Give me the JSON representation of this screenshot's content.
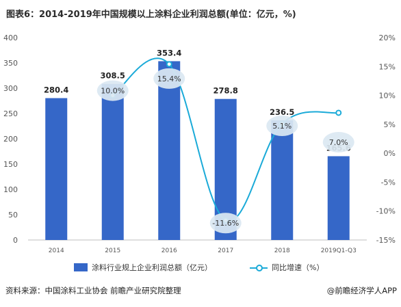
{
  "title": "图表6：2014-2019年中国规模以上涂料企业利润总额(单位：亿元，%)",
  "source": "资料来源：中国涂料工业协会 前瞻产业研究院整理",
  "brand": "@前瞻经济学人APP",
  "colors": {
    "bar": "#3567c8",
    "line": "#1aaad8",
    "label_bubble": "#dbe8f2",
    "axis_text": "#555555"
  },
  "chart_data": {
    "type": "bar",
    "categories": [
      "2014",
      "2015",
      "2016",
      "2017",
      "2018",
      "2019Q1-Q3"
    ],
    "series": [
      {
        "name": "涂料行业规上企业利润总额（亿元）",
        "type": "bar",
        "axis": "left",
        "values": [
          280.4,
          308.5,
          353.4,
          278.8,
          236.5,
          165.6
        ],
        "labels": [
          "280.4",
          "308.5",
          "353.4",
          "278.8",
          "236.5",
          "165.6"
        ]
      },
      {
        "name": "同比增速（%）",
        "type": "line",
        "axis": "right",
        "values": [
          null,
          10.0,
          15.4,
          -11.6,
          5.1,
          7.0
        ],
        "labels": [
          "",
          "10.0%",
          "15.4%",
          "-11.6%",
          "5.1%",
          "7.0%"
        ]
      }
    ],
    "y_left": {
      "min": 0,
      "max": 400,
      "ticks": [
        "0",
        "50",
        "100",
        "150",
        "200",
        "250",
        "300",
        "350",
        "400"
      ]
    },
    "y_right": {
      "min": -15,
      "max": 20,
      "ticks": [
        "-15%",
        "-10%",
        "-5%",
        "0%",
        "5%",
        "10%",
        "15%",
        "20%"
      ]
    },
    "grid": false,
    "legend_position": "bottom"
  },
  "legend": {
    "bar_label": "涂料行业规上企业利润总额（亿元）",
    "line_label": "同比增速（%）"
  }
}
